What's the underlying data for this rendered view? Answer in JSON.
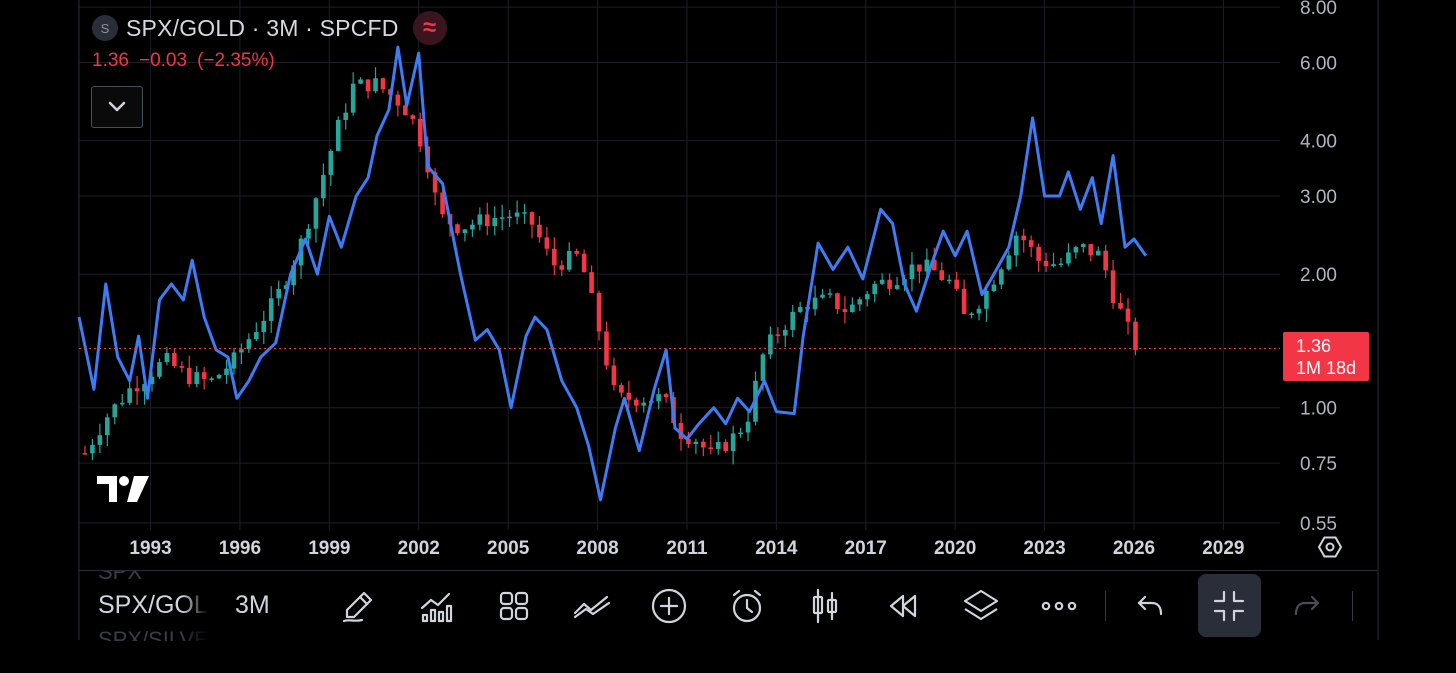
{
  "header": {
    "symbol_badge": "S",
    "symbol_title": "SPX/GOLD · 3M · SPCFD",
    "indicator_glyph": "≈",
    "price": "1.36",
    "change": "−0.03",
    "change_pct": "(−2.35%)"
  },
  "price_tag": {
    "value": "1.36",
    "countdown": "1M 18d"
  },
  "toolbar": {
    "symbol": "SPX/GOLD",
    "symbol_prev": "SPX",
    "symbol_next": "SPX/SILVER",
    "interval": "3M",
    "icons": [
      "pencil-icon",
      "indicators-icon",
      "layout-grid-icon",
      "compare-icon",
      "add-icon",
      "alert-clock-icon",
      "candle-style-icon",
      "replay-icon",
      "layers-icon",
      "more-icon",
      "undo-icon",
      "exit-fullscreen-icon",
      "redo-icon"
    ]
  },
  "colors": {
    "up": "#26a69a",
    "down": "#f23645",
    "compare_line": "#3d7cf5",
    "background": "#000000",
    "grid": "#1c1f26"
  },
  "chart_data": {
    "type": "candlestick",
    "scale": "log",
    "y_ticks": [
      "8.00",
      "6.00",
      "4.00",
      "3.00",
      "2.00",
      "1.00",
      "0.75",
      "0.55"
    ],
    "y_tick_values": [
      8,
      6,
      4,
      3,
      2,
      1,
      0.75,
      0.55
    ],
    "x_ticks": [
      "1993",
      "1996",
      "1999",
      "2002",
      "2005",
      "2008",
      "2011",
      "2014",
      "2017",
      "2020",
      "2023",
      "2026",
      "2029"
    ],
    "x_tick_years": [
      1993,
      1996,
      1999,
      2002,
      2005,
      2008,
      2011,
      2014,
      2017,
      2020,
      2023,
      2026,
      2029
    ],
    "x_range": [
      1990.6,
      2030.9
    ],
    "y_range": [
      0.53,
      8.3
    ],
    "last_price": 1.36,
    "series": [
      {
        "name": "SPX/GOLD",
        "kind": "candles",
        "anchors": [
          [
            1990.8,
            0.79
          ],
          [
            1991.5,
            0.95
          ],
          [
            1992.3,
            1.1
          ],
          [
            1993.0,
            1.2
          ],
          [
            1993.5,
            1.28
          ],
          [
            1994.2,
            1.18
          ],
          [
            1995.0,
            1.14
          ],
          [
            1995.8,
            1.28
          ],
          [
            1996.5,
            1.5
          ],
          [
            1997.2,
            1.75
          ],
          [
            1998.0,
            2.3
          ],
          [
            1998.7,
            3.2
          ],
          [
            1999.3,
            4.3
          ],
          [
            1999.8,
            5.3
          ],
          [
            2000.5,
            5.4
          ],
          [
            2001.2,
            5.0
          ],
          [
            2001.7,
            4.6
          ],
          [
            2002.2,
            3.8
          ],
          [
            2002.7,
            2.7
          ],
          [
            2003.4,
            2.55
          ],
          [
            2004.2,
            2.65
          ],
          [
            2005.1,
            2.72
          ],
          [
            2005.8,
            2.6
          ],
          [
            2006.5,
            2.1
          ],
          [
            2007.4,
            2.2
          ],
          [
            2008.0,
            1.55
          ],
          [
            2008.6,
            1.05
          ],
          [
            2009.3,
            1.05
          ],
          [
            2010.2,
            1.05
          ],
          [
            2010.8,
            0.88
          ],
          [
            2011.3,
            0.85
          ],
          [
            2011.8,
            0.78
          ],
          [
            2012.5,
            0.85
          ],
          [
            2013.0,
            0.93
          ],
          [
            2013.6,
            1.35
          ],
          [
            2014.3,
            1.55
          ],
          [
            2015.0,
            1.72
          ],
          [
            2015.8,
            1.75
          ],
          [
            2016.4,
            1.65
          ],
          [
            2017.2,
            1.88
          ],
          [
            2017.9,
            1.95
          ],
          [
            2018.7,
            2.1
          ],
          [
            2019.2,
            2.05
          ],
          [
            2019.9,
            1.9
          ],
          [
            2020.3,
            1.6
          ],
          [
            2021.0,
            1.8
          ],
          [
            2021.6,
            2.15
          ],
          [
            2022.1,
            2.5
          ],
          [
            2022.8,
            2.15
          ],
          [
            2023.5,
            2.1
          ],
          [
            2024.2,
            2.3
          ],
          [
            2024.9,
            2.2
          ],
          [
            2025.3,
            1.8
          ],
          [
            2025.8,
            1.5
          ],
          [
            2026.1,
            1.36
          ]
        ]
      },
      {
        "name": "compare",
        "kind": "line",
        "points": [
          [
            1990.6,
            1.6
          ],
          [
            1991.1,
            1.1
          ],
          [
            1991.5,
            1.9
          ],
          [
            1991.9,
            1.3
          ],
          [
            1992.3,
            1.15
          ],
          [
            1992.6,
            1.45
          ],
          [
            1992.9,
            1.05
          ],
          [
            1993.3,
            1.75
          ],
          [
            1993.7,
            1.9
          ],
          [
            1994.1,
            1.75
          ],
          [
            1994.4,
            2.15
          ],
          [
            1994.8,
            1.6
          ],
          [
            1995.2,
            1.35
          ],
          [
            1995.6,
            1.3
          ],
          [
            1995.9,
            1.05
          ],
          [
            1996.3,
            1.15
          ],
          [
            1996.7,
            1.3
          ],
          [
            1997.2,
            1.4
          ],
          [
            1997.7,
            2.0
          ],
          [
            1998.2,
            2.4
          ],
          [
            1998.6,
            2.0
          ],
          [
            1999.0,
            2.7
          ],
          [
            1999.4,
            2.3
          ],
          [
            1999.9,
            3.0
          ],
          [
            2000.3,
            3.3
          ],
          [
            2000.6,
            4.1
          ],
          [
            2001.0,
            4.7
          ],
          [
            2001.3,
            6.5
          ],
          [
            2001.6,
            4.8
          ],
          [
            2002.0,
            6.3
          ],
          [
            2002.3,
            3.5
          ],
          [
            2002.8,
            3.2
          ],
          [
            2003.4,
            2.0
          ],
          [
            2003.9,
            1.42
          ],
          [
            2004.3,
            1.5
          ],
          [
            2004.7,
            1.35
          ],
          [
            2005.1,
            1.0
          ],
          [
            2005.6,
            1.45
          ],
          [
            2005.9,
            1.6
          ],
          [
            2006.3,
            1.5
          ],
          [
            2006.8,
            1.15
          ],
          [
            2007.3,
            1.0
          ],
          [
            2007.7,
            0.82
          ],
          [
            2008.1,
            0.62
          ],
          [
            2008.6,
            0.9
          ],
          [
            2008.9,
            1.05
          ],
          [
            2009.4,
            0.8
          ],
          [
            2009.9,
            1.1
          ],
          [
            2010.3,
            1.35
          ],
          [
            2010.6,
            0.9
          ],
          [
            2011.0,
            0.85
          ],
          [
            2011.4,
            0.92
          ],
          [
            2011.9,
            1.0
          ],
          [
            2012.3,
            0.92
          ],
          [
            2012.7,
            1.05
          ],
          [
            2013.1,
            0.98
          ],
          [
            2013.6,
            1.15
          ],
          [
            2014.0,
            0.98
          ],
          [
            2014.6,
            0.97
          ],
          [
            2014.9,
            1.45
          ],
          [
            2015.4,
            2.35
          ],
          [
            2015.9,
            2.05
          ],
          [
            2016.4,
            2.3
          ],
          [
            2016.9,
            1.95
          ],
          [
            2017.5,
            2.8
          ],
          [
            2017.9,
            2.6
          ],
          [
            2018.3,
            1.9
          ],
          [
            2018.7,
            1.65
          ],
          [
            2019.2,
            2.1
          ],
          [
            2019.6,
            2.5
          ],
          [
            2020.0,
            2.2
          ],
          [
            2020.4,
            2.5
          ],
          [
            2020.9,
            1.8
          ],
          [
            2021.3,
            2.0
          ],
          [
            2021.8,
            2.3
          ],
          [
            2022.2,
            3.0
          ],
          [
            2022.6,
            4.5
          ],
          [
            2023.0,
            3.0
          ],
          [
            2023.5,
            3.0
          ],
          [
            2023.8,
            3.4
          ],
          [
            2024.2,
            2.8
          ],
          [
            2024.6,
            3.3
          ],
          [
            2024.9,
            2.6
          ],
          [
            2025.3,
            3.7
          ],
          [
            2025.7,
            2.3
          ],
          [
            2026.0,
            2.4
          ],
          [
            2026.4,
            2.2
          ]
        ]
      }
    ]
  }
}
